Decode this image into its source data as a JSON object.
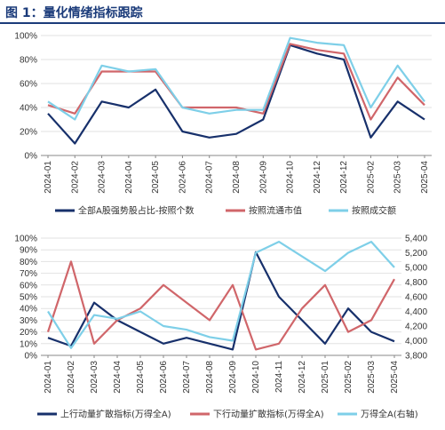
{
  "figure": {
    "title": "图 1：量化情绪指标跟踪"
  },
  "chart_data": [
    {
      "type": "line",
      "x": [
        "2024-01",
        "2024-02",
        "2024-03",
        "2024-04",
        "2024-05",
        "2024-06",
        "2024-07",
        "2024-08",
        "2024-09",
        "2024-10",
        "2024-12",
        "2024-12",
        "2025-02",
        "2025-03",
        "2025-04"
      ],
      "ylim": [
        0,
        100
      ],
      "yticks": [
        "0%",
        "20%",
        "40%",
        "60%",
        "80%",
        "100%"
      ],
      "legend_position": "bottom",
      "series": [
        {
          "name": "全部A股强势股占比-按照个数",
          "color": "#17306b",
          "values": [
            35,
            10,
            45,
            40,
            55,
            20,
            15,
            18,
            30,
            92,
            85,
            80,
            15,
            45,
            30
          ]
        },
        {
          "name": "按照流通市值",
          "color": "#d0666a",
          "values": [
            42,
            35,
            70,
            70,
            70,
            40,
            40,
            40,
            35,
            93,
            88,
            85,
            30,
            65,
            42
          ]
        },
        {
          "name": "按照成交额",
          "color": "#7ecfe8",
          "values": [
            45,
            30,
            75,
            70,
            72,
            40,
            35,
            38,
            38,
            98,
            94,
            92,
            40,
            75,
            45
          ]
        }
      ]
    },
    {
      "type": "line",
      "x": [
        "2024-01",
        "2024-02",
        "2024-03",
        "2024-04",
        "2024-05",
        "2024-06",
        "2024-07",
        "2024-08",
        "2024-09",
        "2024-10",
        "2024-11",
        "2024-12",
        "2025-01",
        "2025-02",
        "2025-03",
        "2025-04"
      ],
      "ylim": [
        0,
        100
      ],
      "yticks": [
        "0%",
        "10%",
        "20%",
        "30%",
        "40%",
        "50%",
        "60%",
        "70%",
        "80%",
        "90%",
        "100%"
      ],
      "y2lim": [
        3800,
        5400
      ],
      "y2ticks": [
        "3,800",
        "4,000",
        "4,200",
        "4,400",
        "4,600",
        "4,800",
        "5,000",
        "5,200",
        "5,400"
      ],
      "legend_position": "bottom",
      "series": [
        {
          "name": "上行动量扩散指标(万得全A)",
          "color": "#17306b",
          "axis": "left",
          "values": [
            15,
            8,
            45,
            30,
            20,
            10,
            15,
            10,
            5,
            88,
            50,
            30,
            10,
            40,
            20,
            12
          ]
        },
        {
          "name": "下行动量扩散指标(万得全A)",
          "color": "#d0666a",
          "axis": "left",
          "values": [
            20,
            80,
            10,
            30,
            40,
            60,
            45,
            30,
            60,
            5,
            10,
            40,
            60,
            20,
            30,
            65
          ]
        },
        {
          "name": "万得全A(右轴)",
          "color": "#7ecfe8",
          "axis": "right",
          "values": [
            4400,
            3900,
            4350,
            4300,
            4400,
            4200,
            4150,
            4050,
            4000,
            5200,
            5350,
            5150,
            4950,
            5200,
            5350,
            5000
          ]
        }
      ]
    }
  ]
}
